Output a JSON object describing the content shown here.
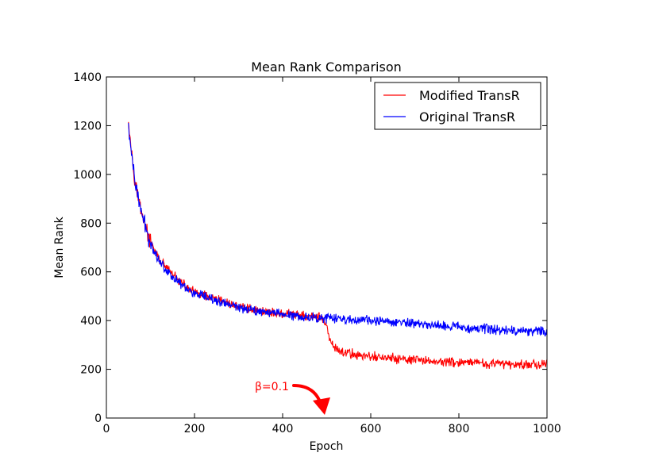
{
  "chart_data": {
    "type": "line",
    "title": "Mean Rank Comparison",
    "xlabel": "Epoch",
    "ylabel": "Mean Rank",
    "xlim": [
      0,
      1000
    ],
    "ylim": [
      0,
      1400
    ],
    "xticks": [
      0,
      200,
      400,
      600,
      800,
      1000
    ],
    "yticks": [
      0,
      200,
      400,
      600,
      800,
      1000,
      1200,
      1400
    ],
    "grid": false,
    "legend_position": "top-right",
    "series": [
      {
        "name": "Modified TransR",
        "color": "#ff0000",
        "noise": 24,
        "x": [
          50,
          55,
          60,
          65,
          70,
          80,
          90,
          100,
          120,
          140,
          160,
          180,
          200,
          250,
          300,
          350,
          400,
          450,
          490,
          500,
          510,
          530,
          560,
          600,
          700,
          800,
          900,
          1000
        ],
        "values": [
          1240,
          1130,
          1050,
          980,
          920,
          850,
          780,
          720,
          650,
          610,
          570,
          540,
          515,
          485,
          460,
          440,
          428,
          420,
          412,
          370,
          300,
          275,
          262,
          252,
          237,
          227,
          222,
          220
        ]
      },
      {
        "name": "Original TransR",
        "color": "#0000ff",
        "noise": 24,
        "x": [
          50,
          55,
          60,
          65,
          70,
          80,
          90,
          100,
          120,
          140,
          160,
          180,
          200,
          250,
          300,
          350,
          400,
          450,
          500,
          600,
          700,
          800,
          900,
          1000
        ],
        "values": [
          1200,
          1110,
          1040,
          970,
          915,
          845,
          775,
          715,
          645,
          600,
          565,
          535,
          510,
          480,
          455,
          438,
          428,
          415,
          410,
          400,
          388,
          375,
          360,
          355
        ]
      }
    ],
    "annotation": {
      "text": "β=0.1",
      "color": "#ff0000",
      "target_x": 500,
      "target_y": 0
    }
  }
}
